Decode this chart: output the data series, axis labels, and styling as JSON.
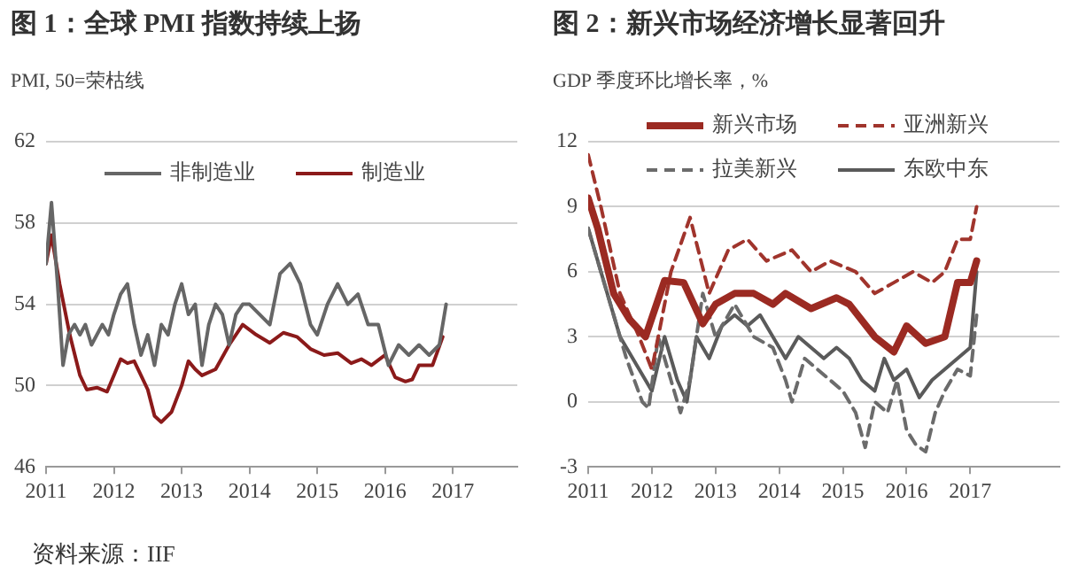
{
  "chart_data": [
    {
      "type": "line",
      "title": "图 1：全球 PMI 指数持续上扬",
      "ylabel": "PMI, 50=荣枯线",
      "xlim": [
        2011,
        2017.95
      ],
      "xticks": [
        2011,
        2012,
        2013,
        2014,
        2015,
        2016,
        2017
      ],
      "ylim": [
        46,
        62
      ],
      "yticks": [
        46,
        50,
        54,
        58,
        62
      ],
      "grid": "y",
      "legend": "top",
      "marker": "none",
      "annotations": [
        "资料来源：IIF"
      ],
      "series": [
        {
          "name": "非制造业",
          "color": "#666666",
          "line_style": "solid",
          "x": [
            2011.0,
            2011.08,
            2011.17,
            2011.25,
            2011.33,
            2011.42,
            2011.5,
            2011.58,
            2011.67,
            2011.75,
            2011.83,
            2011.92,
            2012.0,
            2012.1,
            2012.2,
            2012.3,
            2012.4,
            2012.5,
            2012.6,
            2012.7,
            2012.8,
            2012.9,
            2013.0,
            2013.1,
            2013.2,
            2013.3,
            2013.4,
            2013.5,
            2013.6,
            2013.7,
            2013.8,
            2013.9,
            2014.0,
            2014.15,
            2014.3,
            2014.45,
            2014.6,
            2014.75,
            2014.9,
            2015.0,
            2015.15,
            2015.3,
            2015.45,
            2015.6,
            2015.75,
            2015.9,
            2016.05,
            2016.2,
            2016.35,
            2016.5,
            2016.65,
            2016.8,
            2016.9
          ],
          "values": [
            56,
            59,
            55,
            51,
            52.5,
            53,
            52.5,
            53,
            52,
            52.5,
            53,
            52.5,
            53.5,
            54.5,
            55,
            53,
            51.5,
            52.5,
            51,
            53,
            52.5,
            54,
            55,
            53.5,
            54,
            51,
            53,
            54,
            53.5,
            52,
            53.5,
            54,
            54,
            53.5,
            53,
            55.5,
            56,
            55,
            53,
            52.5,
            54,
            55,
            54,
            54.5,
            53,
            53,
            51,
            52,
            51.5,
            52,
            51.5,
            52,
            54
          ]
        },
        {
          "name": "制造业",
          "color": "#8b1a1a",
          "line_style": "solid",
          "x": [
            2011.0,
            2011.08,
            2011.2,
            2011.35,
            2011.5,
            2011.6,
            2011.75,
            2011.9,
            2012.0,
            2012.1,
            2012.2,
            2012.3,
            2012.4,
            2012.5,
            2012.6,
            2012.7,
            2012.85,
            2013.0,
            2013.1,
            2013.2,
            2013.3,
            2013.5,
            2013.7,
            2013.9,
            2014.1,
            2014.3,
            2014.5,
            2014.7,
            2014.9,
            2015.1,
            2015.3,
            2015.5,
            2015.65,
            2015.8,
            2016.0,
            2016.15,
            2016.3,
            2016.4,
            2016.5,
            2016.7,
            2016.85
          ],
          "values": [
            56,
            57.4,
            55,
            52.5,
            50.5,
            49.8,
            49.9,
            49.7,
            50.5,
            51.3,
            51.1,
            51.2,
            50.5,
            49.8,
            48.5,
            48.2,
            48.7,
            50,
            51.2,
            50.8,
            50.5,
            50.8,
            52,
            53,
            52.5,
            52.1,
            52.6,
            52.4,
            51.8,
            51.5,
            51.6,
            51.1,
            51.3,
            51,
            51.5,
            50.4,
            50.2,
            50.3,
            51,
            51,
            52.4
          ]
        }
      ]
    },
    {
      "type": "line",
      "title": "图 2：新兴市场经济增长显著回升",
      "ylabel": "GDP 季度环比增长率，%",
      "xlim": [
        2011,
        2018.4
      ],
      "xticks": [
        2011,
        2012,
        2013,
        2014,
        2015,
        2016,
        2017
      ],
      "ylim": [
        -3,
        12
      ],
      "yticks": [
        -3,
        0,
        3,
        6,
        9,
        12
      ],
      "grid": "y",
      "legend": "top",
      "marker": "none",
      "series": [
        {
          "name": "新兴市场",
          "color": "#9b2a22",
          "line_style": "solid",
          "x": [
            2011.0,
            2011.15,
            2011.4,
            2011.65,
            2011.9,
            2012.2,
            2012.5,
            2012.8,
            2013.0,
            2013.3,
            2013.6,
            2013.9,
            2014.1,
            2014.5,
            2014.9,
            2015.1,
            2015.5,
            2015.8,
            2016.0,
            2016.3,
            2016.6,
            2016.8,
            2017.0,
            2017.1
          ],
          "values": [
            9.4,
            8,
            5,
            3.8,
            3,
            5.6,
            5.5,
            3.6,
            4.5,
            5,
            5,
            4.5,
            5,
            4.3,
            4.8,
            4.5,
            3,
            2.3,
            3.5,
            2.7,
            3,
            5.5,
            5.5,
            6.5
          ]
        },
        {
          "name": "亚洲新兴",
          "color": "#a0342c",
          "line_style": "dashed",
          "x": [
            2011.0,
            2011.2,
            2011.5,
            2011.8,
            2012.0,
            2012.3,
            2012.6,
            2012.9,
            2013.2,
            2013.5,
            2013.8,
            2014.2,
            2014.5,
            2014.8,
            2015.2,
            2015.5,
            2015.8,
            2016.1,
            2016.4,
            2016.6,
            2016.8,
            2017.0,
            2017.1
          ],
          "values": [
            11.4,
            9,
            5,
            3,
            1.5,
            6,
            8.5,
            5,
            7,
            7.5,
            6.5,
            7,
            6,
            6.5,
            6,
            5,
            5.5,
            6,
            5.5,
            6,
            7.5,
            7.5,
            9
          ]
        },
        {
          "name": "拉美新兴",
          "color": "#6b6b6b",
          "line_style": "dashed",
          "x": [
            2011.0,
            2011.3,
            2011.6,
            2011.85,
            2011.95,
            2012.1,
            2012.3,
            2012.45,
            2012.6,
            2012.8,
            2013.0,
            2013.3,
            2013.6,
            2013.9,
            2014.1,
            2014.2,
            2014.4,
            2014.6,
            2014.8,
            2015.0,
            2015.2,
            2015.35,
            2015.5,
            2015.7,
            2015.85,
            2016.0,
            2016.15,
            2016.3,
            2016.45,
            2016.6,
            2016.8,
            2017.0,
            2017.1
          ],
          "values": [
            8,
            5,
            2,
            0,
            -0.3,
            3,
            1,
            -0.5,
            1,
            5,
            3,
            4.5,
            3,
            2.5,
            1,
            0,
            2,
            1.5,
            1,
            0.5,
            -0.5,
            -2.1,
            0,
            -0.5,
            1,
            -1.3,
            -2,
            -2.3,
            -0.5,
            0.5,
            1.5,
            1.2,
            4
          ]
        },
        {
          "name": "东欧中东",
          "color": "#5a5a5a",
          "line_style": "solid",
          "x": [
            2011.0,
            2011.2,
            2011.5,
            2011.8,
            2012.0,
            2012.2,
            2012.4,
            2012.55,
            2012.7,
            2012.9,
            2013.1,
            2013.3,
            2013.5,
            2013.7,
            2013.9,
            2014.1,
            2014.3,
            2014.5,
            2014.7,
            2014.9,
            2015.1,
            2015.3,
            2015.5,
            2015.65,
            2015.8,
            2016.0,
            2016.2,
            2016.4,
            2016.6,
            2016.8,
            2017.0,
            2017.1
          ],
          "values": [
            8,
            6,
            3,
            1.5,
            0.5,
            3,
            1,
            0,
            3,
            2,
            3.5,
            4,
            3.5,
            4,
            3,
            2,
            3,
            2.5,
            2,
            2.5,
            2,
            1,
            0.5,
            2,
            1,
            1.5,
            0.2,
            1,
            1.5,
            2,
            2.5,
            6
          ]
        }
      ]
    }
  ]
}
